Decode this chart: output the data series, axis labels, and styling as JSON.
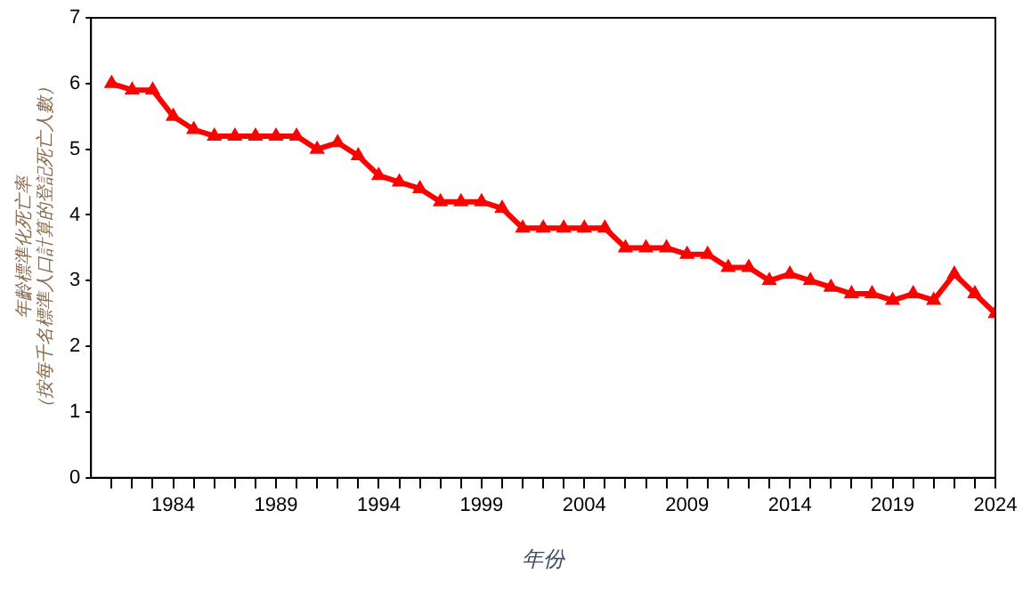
{
  "chart_data": {
    "type": "line",
    "xlabel": "年份",
    "ylabel": "年齡標準化死亡率（按每千名標準人口計算的登記死亡人數）",
    "x": [
      1981,
      1982,
      1983,
      1984,
      1985,
      1986,
      1987,
      1988,
      1989,
      1990,
      1991,
      1992,
      1993,
      1994,
      1995,
      1996,
      1997,
      1998,
      1999,
      2000,
      2001,
      2002,
      2003,
      2004,
      2005,
      2006,
      2007,
      2008,
      2009,
      2010,
      2011,
      2012,
      2013,
      2014,
      2015,
      2016,
      2017,
      2018,
      2019,
      2020,
      2021,
      2022,
      2023,
      2024
    ],
    "series": [
      {
        "color": "#ff0000",
        "values": [
          6.0,
          5.9,
          5.9,
          5.5,
          5.3,
          5.2,
          5.2,
          5.2,
          5.2,
          5.2,
          5.0,
          5.1,
          4.9,
          4.6,
          4.5,
          4.4,
          4.2,
          4.2,
          4.2,
          4.1,
          3.8,
          3.8,
          3.8,
          3.8,
          3.8,
          3.5,
          3.5,
          3.5,
          3.4,
          3.4,
          3.2,
          3.2,
          3.0,
          3.1,
          3.0,
          2.9,
          2.8,
          2.8,
          2.7,
          2.8,
          2.7,
          3.1,
          2.8,
          2.5
        ]
      }
    ],
    "xlim": [
      1980,
      2024
    ],
    "xticks": [
      {
        "value": 1981,
        "label": null
      },
      {
        "value": 1982,
        "label": null
      },
      {
        "value": 1983,
        "label": null
      },
      1984,
      {
        "value": 1985,
        "label": null
      },
      {
        "value": 1986,
        "label": null
      },
      {
        "value": 1987,
        "label": null
      },
      {
        "value": 1988,
        "label": null
      },
      1989,
      {
        "value": 1990,
        "label": null
      },
      {
        "value": 1991,
        "label": null
      },
      {
        "value": 1992,
        "label": null
      },
      {
        "value": 1993,
        "label": null
      },
      1994,
      {
        "value": 1995,
        "label": null
      },
      {
        "value": 1996,
        "label": null
      },
      {
        "value": 1997,
        "label": null
      },
      {
        "value": 1998,
        "label": null
      },
      1999,
      {
        "value": 2000,
        "label": null
      },
      {
        "value": 2001,
        "label": null
      },
      {
        "value": 2002,
        "label": null
      },
      {
        "value": 2003,
        "label": null
      },
      2004,
      {
        "value": 2005,
        "label": null
      },
      {
        "value": 2006,
        "label": null
      },
      {
        "value": 2007,
        "label": null
      },
      {
        "value": 2008,
        "label": null
      },
      2009,
      {
        "value": 2010,
        "label": null
      },
      {
        "value": 2011,
        "label": null
      },
      {
        "value": 2012,
        "label": null
      },
      {
        "value": 2013,
        "label": null
      },
      2014,
      {
        "value": 2015,
        "label": null
      },
      {
        "value": 2016,
        "label": null
      },
      {
        "value": 2017,
        "label": null
      },
      {
        "value": 2018,
        "label": null
      },
      2019,
      {
        "value": 2020,
        "label": null
      },
      {
        "value": 2021,
        "label": null
      },
      {
        "value": 2022,
        "label": null
      },
      {
        "value": 2023,
        "label": null
      },
      2024
    ],
    "ylim": [
      0,
      7
    ],
    "yticks": [
      0,
      1,
      2,
      3,
      4,
      5,
      6,
      7
    ],
    "grid": false,
    "legend": false,
    "marker": "triangle",
    "line_style": "solid"
  }
}
